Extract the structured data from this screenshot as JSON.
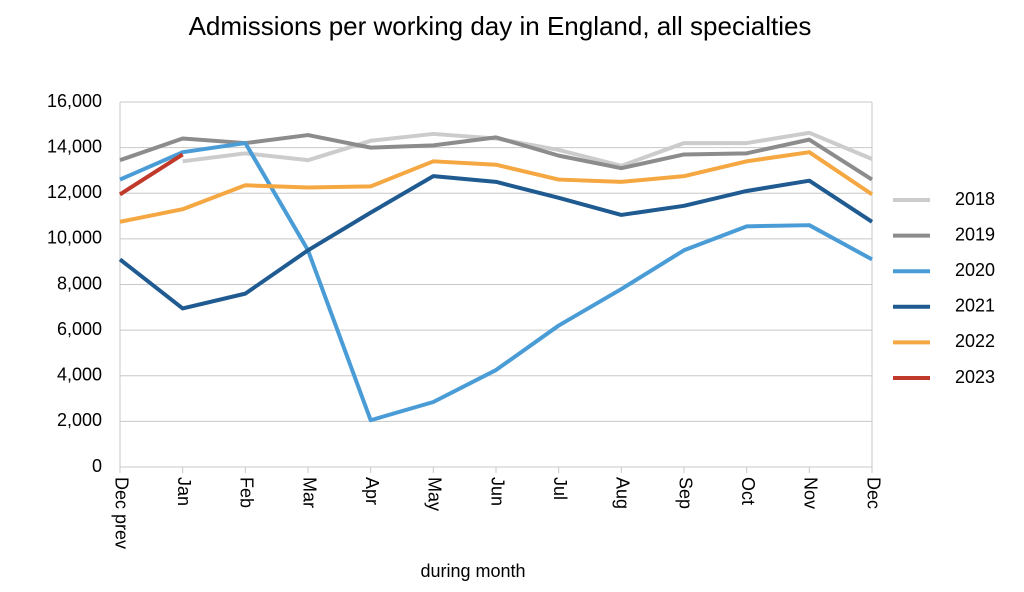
{
  "chart_data": {
    "type": "line",
    "title": "Admissions per working day in England, all specialties",
    "x_label": "during  month",
    "categories": [
      "Dec prev",
      "Jan",
      "Feb",
      "Mar",
      "Apr",
      "May",
      "Jun",
      "Jul",
      "Aug",
      "Sep",
      "Oct",
      "Nov",
      "Dec"
    ],
    "series": [
      {
        "name": "2018",
        "color": "#cccccc",
        "values": [
          null,
          13400,
          13750,
          13450,
          14300,
          14600,
          14400,
          13900,
          13200,
          14200,
          14200,
          14650,
          13500
        ]
      },
      {
        "name": "2019",
        "color": "#8c8c8c",
        "values": [
          13450,
          14400,
          14200,
          14550,
          14000,
          14100,
          14450,
          13650,
          13100,
          13700,
          13750,
          14350,
          12600
        ]
      },
      {
        "name": "2020",
        "color": "#4a9cd6",
        "values": [
          12600,
          13800,
          14200,
          9500,
          2050,
          2850,
          4250,
          6200,
          7800,
          9500,
          10550,
          10600,
          9100
        ]
      },
      {
        "name": "2021",
        "color": "#1f5a91",
        "values": [
          9100,
          6950,
          7600,
          9500,
          11150,
          12750,
          12500,
          11800,
          11050,
          11450,
          12100,
          12550,
          10750
        ]
      },
      {
        "name": "2022",
        "color": "#f5a742",
        "values": [
          10750,
          11300,
          12350,
          12250,
          12300,
          13400,
          13250,
          12600,
          12500,
          12750,
          13400,
          13800,
          11950
        ]
      },
      {
        "name": "2023",
        "color": "#c0392b",
        "values": [
          11950,
          13700,
          null,
          null,
          null,
          null,
          null,
          null,
          null,
          null,
          null,
          null,
          null
        ]
      }
    ],
    "ylim": [
      0,
      16000
    ],
    "yticks": [
      0,
      {
        "value": 2000,
        "label": "2,000"
      },
      {
        "value": 4000,
        "label": "4,000"
      },
      {
        "value": 6000,
        "label": "6,000"
      },
      {
        "value": 8000,
        "label": "8,000"
      },
      {
        "value": 10000,
        "label": "10,000"
      },
      {
        "value": 12000,
        "label": "12,000"
      },
      {
        "value": 14000,
        "label": "14,000"
      },
      {
        "value": 16000,
        "label": "16,000"
      }
    ],
    "grid": true,
    "legend": "right"
  }
}
